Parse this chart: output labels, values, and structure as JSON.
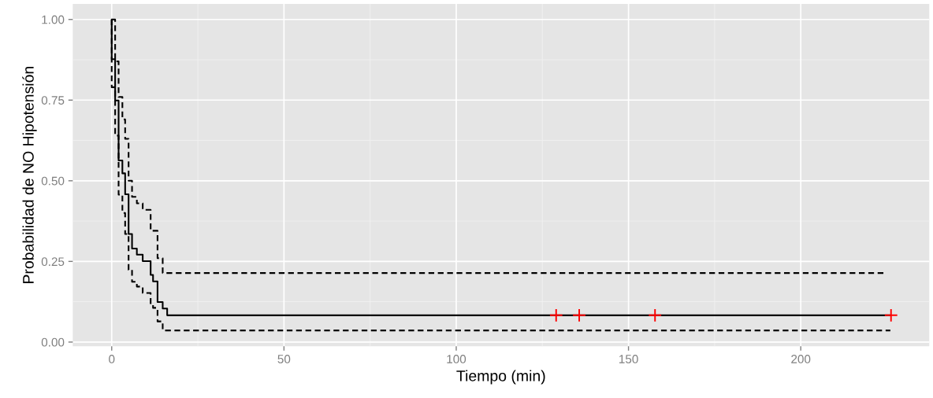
{
  "chart_data": {
    "type": "step",
    "xlabel": "Tiempo (min)",
    "ylabel": "Probabilidad de NO Hipotensión",
    "xlim": [
      -11.3,
      237.3
    ],
    "ylim": [
      -0.013,
      1.048
    ],
    "xticks": [
      0,
      50,
      100,
      150,
      200
    ],
    "yticks": [
      {
        "value": 0,
        "label": "0.00"
      },
      {
        "value": 0.25,
        "label": "0.25"
      },
      {
        "value": 0.5,
        "label": "0.50"
      },
      {
        "value": 0.75,
        "label": "0.75"
      },
      {
        "value": 1,
        "label": "1.00"
      }
    ],
    "grid": true,
    "series": [
      {
        "color": "#000000",
        "line_style": "solid",
        "x": [
          0,
          0,
          1,
          2,
          3.1,
          3.9,
          4.9,
          5.9,
          7.3,
          9,
          11.3,
          12,
          13.3,
          14.8,
          16.1,
          226
        ],
        "values": [
          1.0,
          0.877,
          0.749,
          0.563,
          0.523,
          0.458,
          0.335,
          0.29,
          0.271,
          0.251,
          0.208,
          0.188,
          0.124,
          0.104,
          0.083,
          0.083
        ]
      },
      {
        "color": "#000000",
        "line_style": "dashed",
        "x": [
          0,
          1,
          2,
          3.1,
          3.9,
          4.9,
          5.9,
          7.3,
          9,
          11.3,
          13.3,
          14.8,
          224
        ],
        "values": [
          1.0,
          0.87,
          0.76,
          0.69,
          0.63,
          0.5,
          0.45,
          0.43,
          0.41,
          0.345,
          0.26,
          0.214,
          0.214
        ]
      },
      {
        "color": "#000000",
        "line_style": "dashed",
        "x": [
          0,
          0,
          1,
          2,
          3.1,
          3.9,
          4.9,
          5.9,
          7.3,
          9,
          11.3,
          12,
          13.3,
          14.8,
          226
        ],
        "values": [
          1.0,
          0.79,
          0.64,
          0.457,
          0.4,
          0.335,
          0.224,
          0.187,
          0.172,
          0.152,
          0.115,
          0.106,
          0.064,
          0.036,
          0.036
        ]
      },
      {
        "type": "scatter",
        "color": "#ff0000",
        "marker": "cross",
        "x": [
          129,
          135.7,
          157.7,
          226.2
        ],
        "values": [
          0.083,
          0.083,
          0.083,
          0.083
        ]
      }
    ]
  }
}
